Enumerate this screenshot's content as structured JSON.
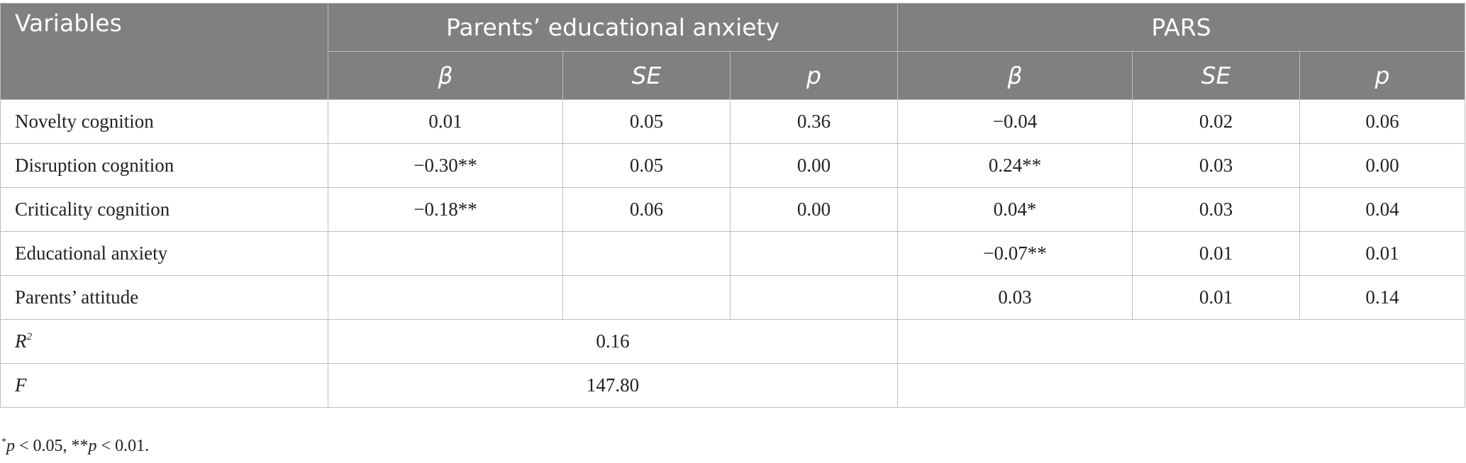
{
  "header": {
    "variables_label": "Variables",
    "group1": "Parents’ educational anxiety",
    "group2": "PARS",
    "sub_beta": "β",
    "sub_se": "SE",
    "sub_p": "p"
  },
  "rows": [
    {
      "label": "Novelty cognition",
      "pea_beta": "0.01",
      "pea_se": "0.05",
      "pea_p": "0.36",
      "pars_beta": "−0.04",
      "pars_se": "0.02",
      "pars_p": "0.06"
    },
    {
      "label": "Disruption cognition",
      "pea_beta": "−0.30**",
      "pea_se": "0.05",
      "pea_p": "0.00",
      "pars_beta": "0.24**",
      "pars_se": "0.03",
      "pars_p": "0.00"
    },
    {
      "label": "Criticality cognition",
      "pea_beta": "−0.18**",
      "pea_se": "0.06",
      "pea_p": "0.00",
      "pars_beta": "0.04*",
      "pars_se": "0.03",
      "pars_p": "0.04"
    },
    {
      "label": "Educational anxiety",
      "pea_beta": "",
      "pea_se": "",
      "pea_p": "",
      "pars_beta": "−0.07**",
      "pars_se": "0.01",
      "pars_p": "0.01"
    },
    {
      "label": "Parents’ attitude",
      "pea_beta": "",
      "pea_se": "",
      "pea_p": "",
      "pars_beta": "0.03",
      "pars_se": "0.01",
      "pars_p": "0.14"
    }
  ],
  "summary": {
    "r2_label": "R",
    "r2_sup": "2",
    "r2_value": "0.16",
    "r2_pars": "",
    "f_label": "F",
    "f_value": "147.80",
    "f_pars": ""
  },
  "footnote": {
    "star1": "*",
    "p1": "p",
    "text1": " < 0.05, ",
    "star2": "**",
    "p2": "p",
    "text2": " < 0.01."
  }
}
